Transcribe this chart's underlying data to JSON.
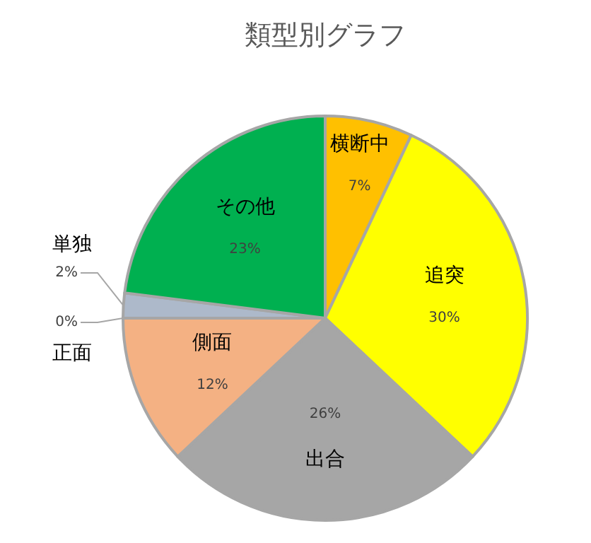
{
  "chart_data": {
    "type": "pie",
    "title": "類型別グラフ",
    "categories": [
      "横断中",
      "追突",
      "出合",
      "側面",
      "正面",
      "単独",
      "その他"
    ],
    "values": [
      7,
      30,
      26,
      12,
      0,
      2,
      23
    ],
    "value_labels": [
      "7%",
      "30%",
      "26%",
      "12%",
      "0%",
      "2%",
      "23%"
    ],
    "colors": [
      "#ffc000",
      "#ffff00",
      "#a6a6a6",
      "#f4b183",
      "#8faadc",
      "#adb9ca",
      "#00b050"
    ]
  }
}
